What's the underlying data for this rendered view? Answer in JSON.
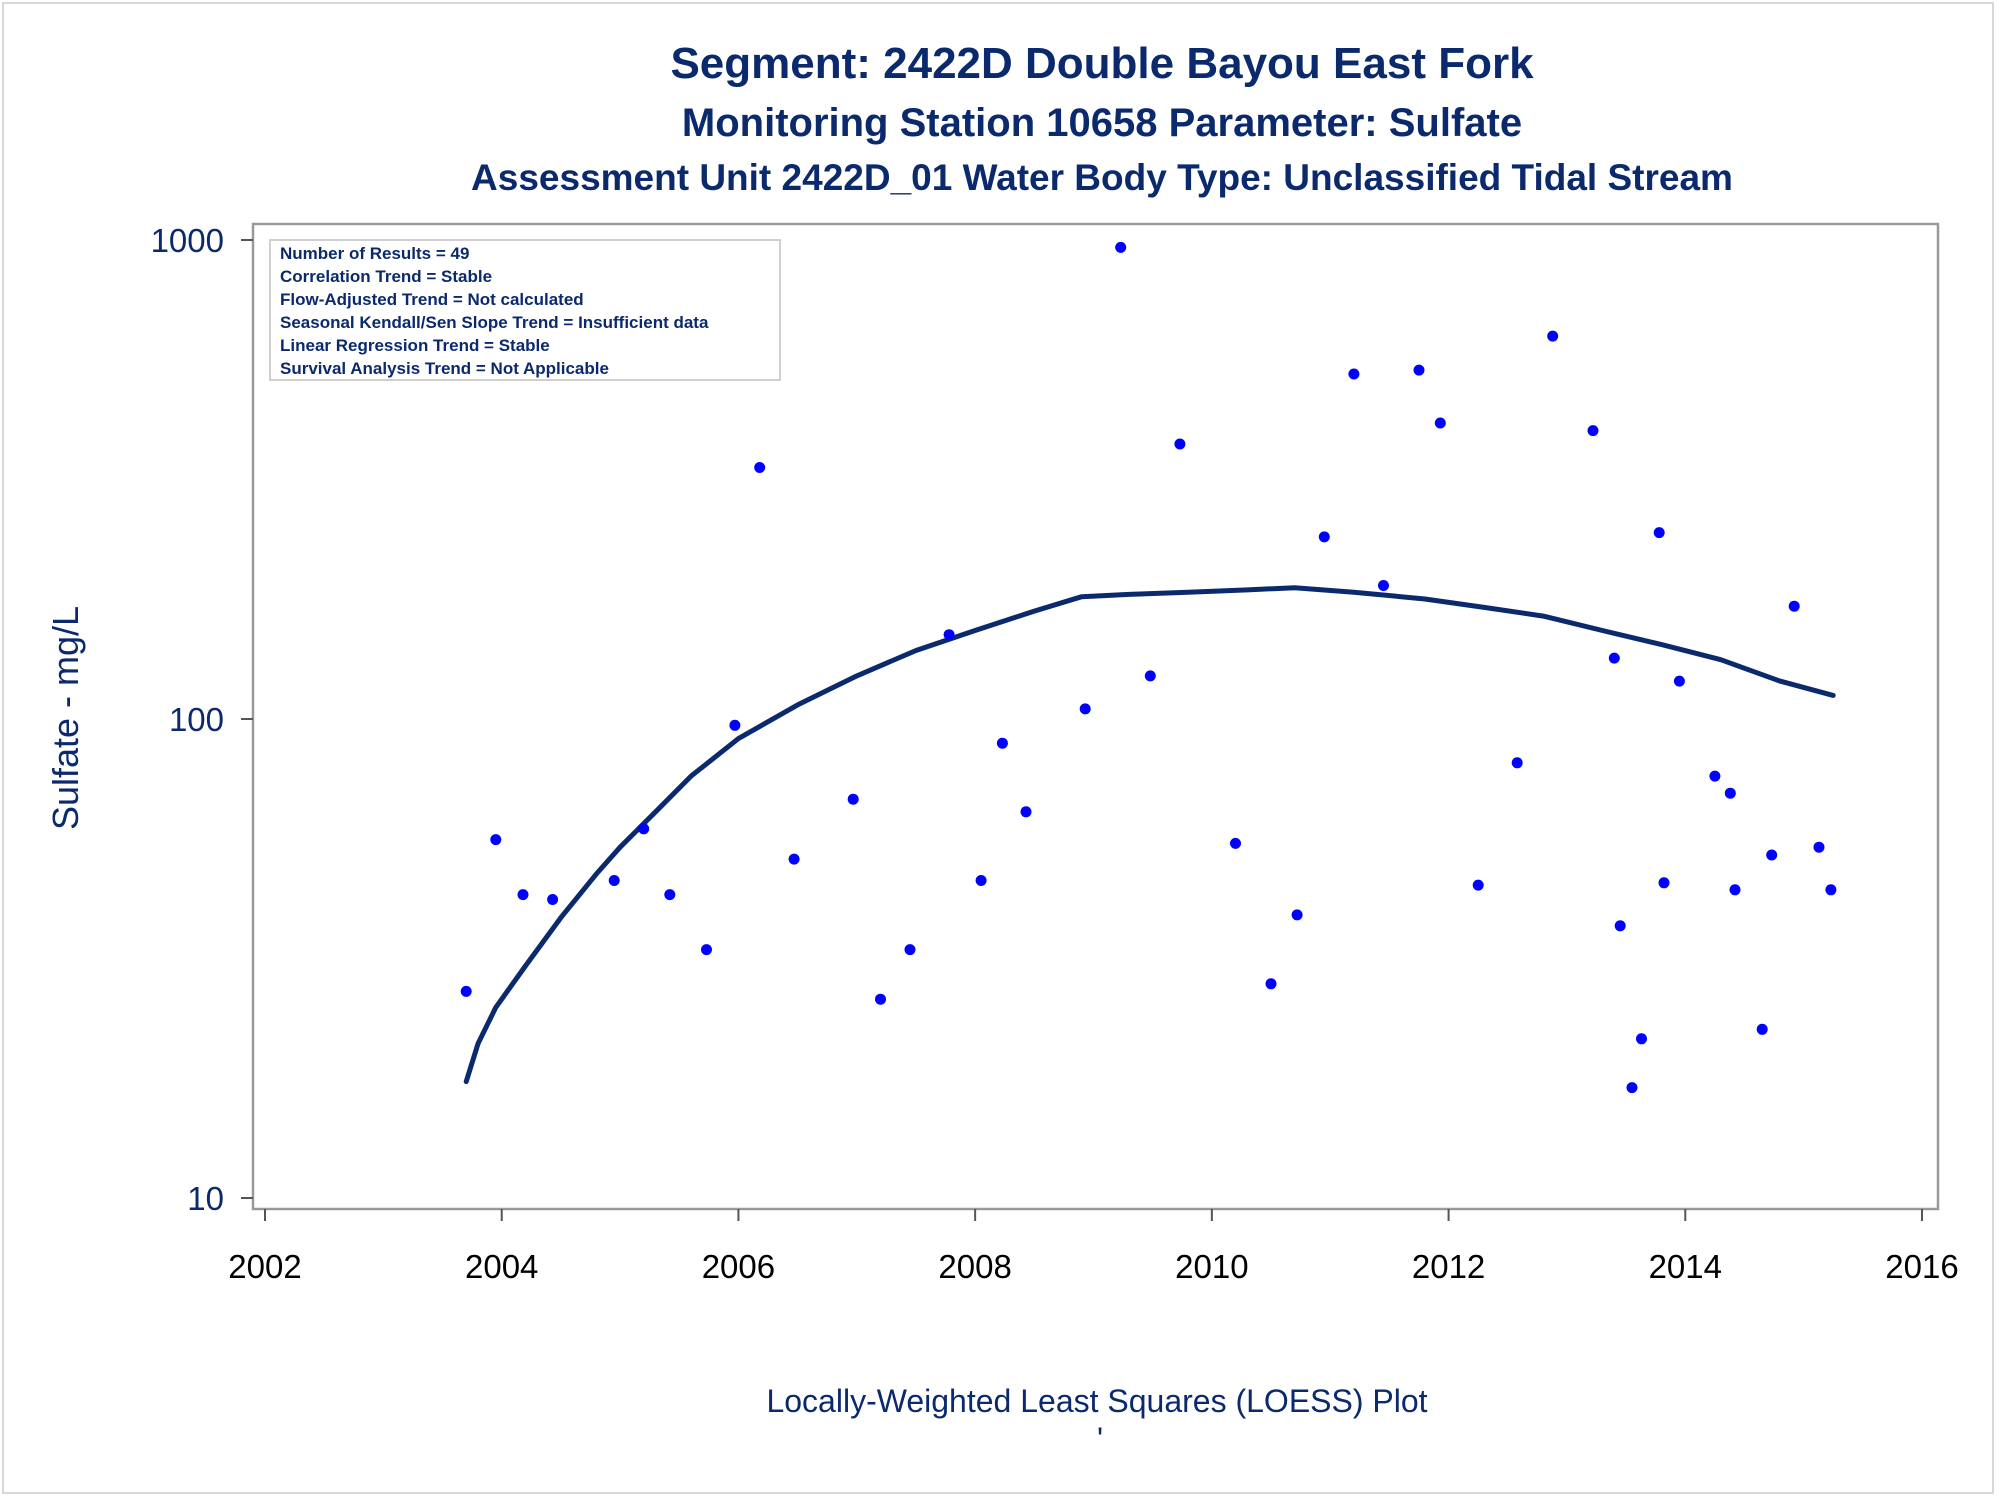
{
  "chart_data": {
    "type": "scatter",
    "title": "Segment: 2422D  Double Bayou East Fork",
    "subtitle": "Monitoring Station 10658 Parameter: Sulfate",
    "subtitle2": "Assessment Unit 2422D_01   Water Body Type: Unclassified Tidal Stream",
    "xlabel": "",
    "ylabel": "Sulfate - mg/L",
    "footnote": "Locally-Weighted Least Squares (LOESS) Plot",
    "footnote_mark": "'",
    "xlim": [
      2002,
      2016
    ],
    "ylim": [
      10,
      1000
    ],
    "yscale": "log",
    "x_ticks": [
      "2002",
      "2004",
      "2006",
      "2008",
      "2010",
      "2012",
      "2014",
      "2016"
    ],
    "y_ticks": [
      "10",
      "100",
      "1000"
    ],
    "grid": false,
    "stats_box": {
      "position": "top-left",
      "lines": [
        "Number of Results = 49",
        "Correlation Trend = Stable",
        "Flow-Adjusted Trend = Not calculated",
        "Seasonal Kendall/Sen Slope Trend = Insufficient data",
        "Linear Regression Trend = Stable",
        "Survival Analysis Trend = Not Applicable"
      ]
    },
    "colors": {
      "points": "#0000ff",
      "curve": "#0b2a6e",
      "text": "#0b2a6e",
      "frame": "#999999"
    },
    "points": [
      [
        2003.7,
        27
      ],
      [
        2003.95,
        56
      ],
      [
        2004.18,
        43
      ],
      [
        2004.43,
        42
      ],
      [
        2004.95,
        46
      ],
      [
        2005.2,
        59
      ],
      [
        2005.42,
        43
      ],
      [
        2005.73,
        33
      ],
      [
        2005.97,
        97
      ],
      [
        2006.18,
        335
      ],
      [
        2006.47,
        51
      ],
      [
        2006.97,
        68
      ],
      [
        2007.2,
        26
      ],
      [
        2007.45,
        33
      ],
      [
        2007.78,
        150
      ],
      [
        2008.05,
        46
      ],
      [
        2008.23,
        89
      ],
      [
        2008.43,
        64
      ],
      [
        2008.93,
        105
      ],
      [
        2009.23,
        965
      ],
      [
        2009.48,
        123
      ],
      [
        2009.73,
        375
      ],
      [
        2010.2,
        55
      ],
      [
        2010.5,
        28
      ],
      [
        2010.72,
        39
      ],
      [
        2010.95,
        240
      ],
      [
        2011.2,
        525
      ],
      [
        2011.45,
        190
      ],
      [
        2011.75,
        535
      ],
      [
        2011.93,
        415
      ],
      [
        2012.25,
        45
      ],
      [
        2012.58,
        81
      ],
      [
        2012.88,
        630
      ],
      [
        2013.22,
        400
      ],
      [
        2013.4,
        134
      ],
      [
        2013.45,
        37
      ],
      [
        2013.55,
        17
      ],
      [
        2013.63,
        21.5
      ],
      [
        2013.78,
        245
      ],
      [
        2013.82,
        45.5
      ],
      [
        2013.95,
        120
      ],
      [
        2014.25,
        76
      ],
      [
        2014.38,
        70
      ],
      [
        2014.42,
        44
      ],
      [
        2014.65,
        22.5
      ],
      [
        2014.73,
        52
      ],
      [
        2014.92,
        172
      ],
      [
        2015.13,
        54
      ],
      [
        2015.23,
        44
      ]
    ],
    "loess_curve": [
      [
        2003.7,
        17.5
      ],
      [
        2003.8,
        21
      ],
      [
        2003.95,
        25
      ],
      [
        2004.2,
        30.5
      ],
      [
        2004.5,
        38.5
      ],
      [
        2004.8,
        47.5
      ],
      [
        2005.0,
        54
      ],
      [
        2005.3,
        64
      ],
      [
        2005.6,
        76
      ],
      [
        2006.0,
        91
      ],
      [
        2006.5,
        107
      ],
      [
        2007.0,
        123
      ],
      [
        2007.5,
        139
      ],
      [
        2008.0,
        153
      ],
      [
        2008.5,
        168
      ],
      [
        2008.9,
        180
      ],
      [
        2009.3,
        182
      ],
      [
        2009.8,
        184
      ],
      [
        2010.3,
        186
      ],
      [
        2010.7,
        188
      ],
      [
        2011.2,
        184
      ],
      [
        2011.8,
        178
      ],
      [
        2012.3,
        171
      ],
      [
        2012.8,
        164
      ],
      [
        2013.3,
        153
      ],
      [
        2013.8,
        143
      ],
      [
        2014.3,
        133
      ],
      [
        2014.8,
        120
      ],
      [
        2015.25,
        112
      ]
    ]
  }
}
